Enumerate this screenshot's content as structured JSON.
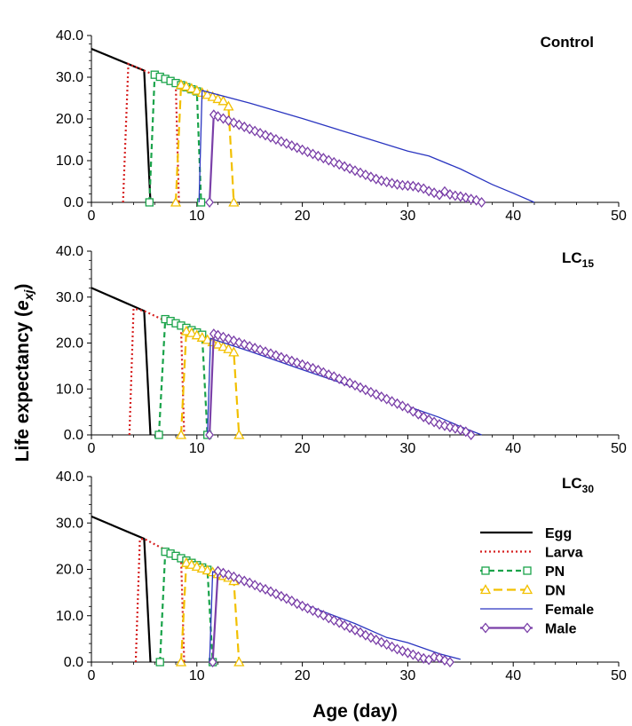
{
  "ylabel": {
    "main": "Life  expectancy (",
    "var": "e",
    "sub": "xj",
    "close": ")"
  },
  "xlabel": "Age (day)",
  "legend": [
    {
      "name": "Egg",
      "color": "#000000",
      "dash": "none",
      "marker": "none"
    },
    {
      "name": "Larva",
      "color": "#d62020",
      "dash": "2 3",
      "marker": "none"
    },
    {
      "name": "PN",
      "color": "#1aa34a",
      "dash": "6 4",
      "marker": "square"
    },
    {
      "name": "DN",
      "color": "#f2c000",
      "dash": "10 5",
      "marker": "triangle"
    },
    {
      "name": "Female",
      "color": "#2a35c0",
      "dash": "none",
      "marker": "none"
    },
    {
      "name": "Male",
      "color": "#7a3fa8",
      "dash": "none",
      "marker": "diamond"
    }
  ],
  "chart_data": [
    {
      "type": "line",
      "label": "Control",
      "label_sub": "",
      "xlim": [
        0,
        50
      ],
      "ylim": [
        0,
        40
      ],
      "xticks": [
        "0",
        "10",
        "20",
        "30",
        "40",
        "50"
      ],
      "yticks": [
        "0.0",
        "10.0",
        "20.0",
        "30.0",
        "40.0"
      ],
      "series": [
        {
          "name": "Egg",
          "x": [
            0,
            5,
            5.6
          ],
          "y": [
            36.8,
            31.6,
            0
          ]
        },
        {
          "name": "Larva",
          "x": [
            3,
            3.5,
            5,
            8,
            8.3
          ],
          "y": [
            0,
            33.2,
            31.6,
            28.3,
            0
          ]
        },
        {
          "name": "PN",
          "x": [
            5.5,
            6,
            6.5,
            7,
            7.5,
            8,
            8.5,
            9,
            9.5,
            10,
            10.4
          ],
          "y": [
            0,
            30.6,
            30.1,
            29.6,
            29.1,
            28.6,
            28.1,
            27.6,
            27.1,
            26.6,
            0
          ]
        },
        {
          "name": "DN",
          "x": [
            8,
            8.5,
            9,
            9.5,
            10,
            10.5,
            11,
            11.5,
            12,
            12.5,
            13,
            13.5
          ],
          "y": [
            0,
            28.2,
            27.8,
            27.3,
            26.8,
            26.3,
            25.8,
            25.3,
            24.8,
            24.3,
            23.0,
            0
          ]
        },
        {
          "name": "Female",
          "x": [
            10.2,
            10.5,
            15,
            20,
            25,
            30,
            32,
            35,
            38,
            40,
            42
          ],
          "y": [
            0,
            26.8,
            23.8,
            20.1,
            16.2,
            12.3,
            11.1,
            8.0,
            4.3,
            2.2,
            0
          ]
        },
        {
          "name": "Male",
          "x": [
            11.2,
            11.6,
            12,
            12.5,
            13,
            13.5,
            14,
            14.5,
            15,
            15.5,
            16,
            16.5,
            17,
            17.5,
            18,
            18.5,
            19,
            19.5,
            20,
            20.5,
            21,
            21.5,
            22,
            22.5,
            23,
            23.5,
            24,
            24.5,
            25,
            25.5,
            26,
            26.5,
            27,
            27.5,
            28,
            28.5,
            29,
            29.5,
            30,
            30.5,
            31,
            31.5,
            32,
            32.5,
            33,
            33.5,
            34,
            34.5,
            35,
            35.5,
            36,
            36.5,
            37
          ],
          "y": [
            0,
            21.0,
            20.6,
            20.1,
            19.6,
            19.1,
            18.6,
            18.1,
            17.6,
            17.1,
            16.6,
            16.1,
            15.6,
            15.1,
            14.6,
            14.1,
            13.6,
            13.1,
            12.6,
            12.1,
            11.6,
            11.1,
            10.6,
            10.1,
            9.6,
            9.1,
            8.6,
            8.1,
            7.6,
            7.1,
            6.6,
            6.1,
            5.6,
            5.2,
            4.9,
            4.6,
            4.3,
            4.1,
            4.0,
            3.9,
            3.6,
            3.3,
            2.7,
            2.3,
            1.8,
            2.6,
            1.9,
            1.6,
            1.4,
            1.1,
            0.8,
            0.5,
            0
          ]
        }
      ]
    },
    {
      "type": "line",
      "label": "LC",
      "label_sub": "15",
      "xlim": [
        0,
        50
      ],
      "ylim": [
        0,
        40
      ],
      "xticks": [
        "0",
        "10",
        "20",
        "30",
        "40",
        "50"
      ],
      "yticks": [
        "0.0",
        "10.0",
        "20.0",
        "30.0",
        "40.0"
      ],
      "series": [
        {
          "name": "Egg",
          "x": [
            0,
            5,
            5.6
          ],
          "y": [
            32.0,
            27.0,
            0
          ]
        },
        {
          "name": "Larva",
          "x": [
            3.6,
            4.0,
            5,
            8.5,
            8.8
          ],
          "y": [
            0,
            27.5,
            27.0,
            23.2,
            0
          ]
        },
        {
          "name": "PN",
          "x": [
            6.4,
            7,
            7.5,
            8,
            8.5,
            9,
            9.5,
            10,
            10.5,
            11
          ],
          "y": [
            0,
            25.2,
            24.8,
            24.3,
            23.8,
            23.3,
            22.8,
            22.3,
            21.8,
            0
          ]
        },
        {
          "name": "DN",
          "x": [
            8.5,
            9,
            9.5,
            10,
            10.5,
            11,
            11.5,
            12,
            12.5,
            13,
            13.5,
            14
          ],
          "y": [
            0,
            22.6,
            22.2,
            21.7,
            21.2,
            20.7,
            20.2,
            19.7,
            19.2,
            18.7,
            18.0,
            0
          ]
        },
        {
          "name": "Female",
          "x": [
            11.0,
            11.3,
            15,
            20,
            25,
            30,
            33,
            35,
            37
          ],
          "y": [
            0,
            21.0,
            18.2,
            14.2,
            10.3,
            6.2,
            3.8,
            1.8,
            0
          ]
        },
        {
          "name": "Male",
          "x": [
            11.2,
            11.6,
            12,
            12.5,
            13,
            13.5,
            14,
            14.5,
            15,
            15.5,
            16,
            16.5,
            17,
            17.5,
            18,
            18.5,
            19,
            19.5,
            20,
            20.5,
            21,
            21.5,
            22,
            22.5,
            23,
            23.5,
            24,
            24.5,
            25,
            25.5,
            26,
            26.5,
            27,
            27.5,
            28,
            28.5,
            29,
            29.5,
            30,
            30.5,
            31,
            31.5,
            32,
            32.5,
            33,
            33.5,
            34,
            34.5,
            35,
            35.5,
            36
          ],
          "y": [
            0,
            22.0,
            21.7,
            21.3,
            20.9,
            20.5,
            20.1,
            19.7,
            19.3,
            18.9,
            18.5,
            18.1,
            17.7,
            17.3,
            16.9,
            16.5,
            16.1,
            15.7,
            15.3,
            14.9,
            14.5,
            14.1,
            13.6,
            13.1,
            12.7,
            12.2,
            11.7,
            11.3,
            10.8,
            10.3,
            9.8,
            9.3,
            8.8,
            8.3,
            7.8,
            7.3,
            6.8,
            6.3,
            5.8,
            5.1,
            4.5,
            3.9,
            3.3,
            2.8,
            2.3,
            2.0,
            1.7,
            1.4,
            1.1,
            0.7,
            0
          ]
        }
      ]
    },
    {
      "type": "line",
      "label": "LC",
      "label_sub": "30",
      "xlim": [
        0,
        50
      ],
      "ylim": [
        0,
        40
      ],
      "xticks": [
        "0",
        "10",
        "20",
        "30",
        "40",
        "50"
      ],
      "yticks": [
        "0.0",
        "10.0",
        "20.0",
        "30.0",
        "40.0"
      ],
      "series": [
        {
          "name": "Egg",
          "x": [
            0,
            5,
            5.6
          ],
          "y": [
            31.4,
            26.6,
            0
          ]
        },
        {
          "name": "Larva",
          "x": [
            4.2,
            4.6,
            5,
            8.5,
            8.8
          ],
          "y": [
            0,
            26.5,
            26.6,
            22.4,
            0
          ]
        },
        {
          "name": "PN",
          "x": [
            6.5,
            7,
            7.5,
            8,
            8.5,
            9,
            9.5,
            10,
            10.5,
            11,
            11.5
          ],
          "y": [
            0,
            23.8,
            23.4,
            22.9,
            22.4,
            21.9,
            21.4,
            20.9,
            20.4,
            19.9,
            0
          ]
        },
        {
          "name": "DN",
          "x": [
            8.5,
            9,
            9.5,
            10,
            10.5,
            11,
            11.5,
            12,
            12.5,
            13,
            13.5,
            14
          ],
          "y": [
            0,
            21.4,
            21.0,
            20.6,
            20.2,
            19.8,
            19.4,
            19.0,
            18.6,
            18.2,
            17.5,
            0
          ]
        },
        {
          "name": "Female",
          "x": [
            11.2,
            11.5,
            15,
            20,
            25,
            28,
            30,
            33,
            35
          ],
          "y": [
            0,
            19.5,
            16.9,
            12.6,
            8.3,
            5.3,
            4.2,
            1.8,
            0.6
          ]
        },
        {
          "name": "Male",
          "x": [
            11.5,
            12,
            12.5,
            13,
            13.5,
            14,
            14.5,
            15,
            15.5,
            16,
            16.5,
            17,
            17.5,
            18,
            18.5,
            19,
            19.5,
            20,
            20.5,
            21,
            21.5,
            22,
            22.5,
            23,
            23.5,
            24,
            24.5,
            25,
            25.5,
            26,
            26.5,
            27,
            27.5,
            28,
            28.5,
            29,
            29.5,
            30,
            30.5,
            31,
            31.5,
            32,
            32.5,
            33,
            33.5,
            34
          ],
          "y": [
            0,
            19.6,
            19.2,
            18.8,
            18.4,
            17.9,
            17.5,
            17.1,
            16.6,
            16.1,
            15.7,
            15.2,
            14.7,
            14.2,
            13.7,
            13.2,
            12.6,
            12.1,
            11.6,
            11.1,
            10.6,
            10.1,
            9.5,
            9.0,
            8.5,
            7.9,
            7.4,
            6.9,
            6.4,
            5.8,
            5.3,
            4.8,
            4.3,
            3.8,
            3.3,
            2.8,
            2.4,
            2.0,
            1.6,
            1.2,
            0.8,
            0.5,
            1.1,
            0.9,
            0.4,
            0
          ]
        }
      ]
    }
  ]
}
